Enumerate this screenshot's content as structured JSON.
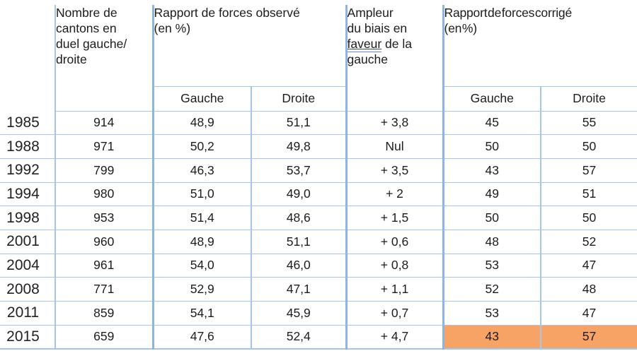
{
  "table": {
    "headers": {
      "cantons": "Nombre de\ncantons en\nduel gauche/\ndroite",
      "observed": "Rapport de forces observé\n(en %)",
      "bias_prefix": "Ampleur\ndu biais en\n",
      "bias_underlined": "faveur",
      "bias_suffix": " de la\ngauche",
      "corrected": "Rapport de forces corrigé\n(en %)",
      "sub_observed_left": "Gauche",
      "sub_observed_right": "Droite",
      "sub_corrected_left": "Gauche",
      "sub_corrected_right": "Droite"
    },
    "rows": [
      {
        "year": "1985",
        "cantons": "914",
        "obs_gauche": "48,9",
        "obs_droite": "51,1",
        "biais": "+ 3,8",
        "cor_gauche": "45",
        "cor_droite": "55"
      },
      {
        "year": "1988",
        "cantons": "971",
        "obs_gauche": "50,2",
        "obs_droite": "49,8",
        "biais": "Nul",
        "cor_gauche": "50",
        "cor_droite": "50"
      },
      {
        "year": "1992",
        "cantons": "799",
        "obs_gauche": "46,3",
        "obs_droite": "53,7",
        "biais": "+ 3,5",
        "cor_gauche": "43",
        "cor_droite": "57"
      },
      {
        "year": "1994",
        "cantons": "980",
        "obs_gauche": "51,0",
        "obs_droite": "49,0",
        "biais": "+ 2",
        "cor_gauche": "49",
        "cor_droite": "51"
      },
      {
        "year": "1998",
        "cantons": "953",
        "obs_gauche": "51,4",
        "obs_droite": "48,6",
        "biais": "+ 1,5",
        "cor_gauche": "50",
        "cor_droite": "50"
      },
      {
        "year": "2001",
        "cantons": "960",
        "obs_gauche": "48,9",
        "obs_droite": "51,1",
        "biais": "+ 0,6",
        "cor_gauche": "48",
        "cor_droite": "52"
      },
      {
        "year": "2004",
        "cantons": "961",
        "obs_gauche": "54,0",
        "obs_droite": "46,0",
        "biais": "+ 0,8",
        "cor_gauche": "53",
        "cor_droite": "47"
      },
      {
        "year": "2008",
        "cantons": "771",
        "obs_gauche": "52,9",
        "obs_droite": "47,1",
        "biais": "+ 1,1",
        "cor_gauche": "52",
        "cor_droite": "48"
      },
      {
        "year": "2011",
        "cantons": "859",
        "obs_gauche": "54,1",
        "obs_droite": "45,9",
        "biais": "+ 0,7",
        "cor_gauche": "53",
        "cor_droite": "47"
      },
      {
        "year": "2015",
        "cantons": "659",
        "obs_gauche": "47,6",
        "obs_droite": "52,4",
        "biais": "+ 4,7",
        "cor_gauche": "43",
        "cor_droite": "57"
      }
    ],
    "colors": {
      "highlight_orange": "#F8A366",
      "border_thin_blue": "#A6C5E8",
      "border_thick_blue": "#8DB4E2",
      "text": "#1c1c1c"
    }
  }
}
